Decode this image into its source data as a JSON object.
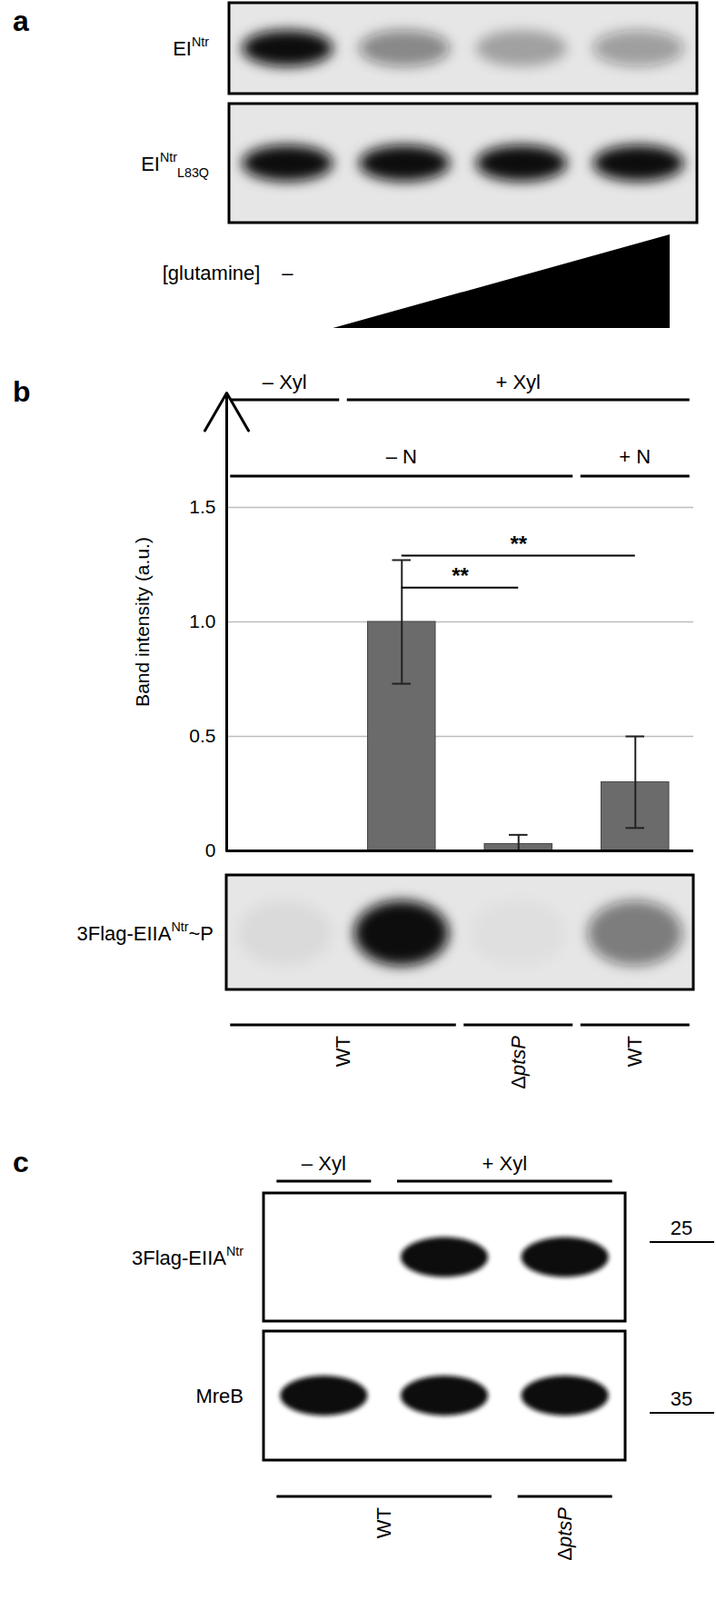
{
  "panel_a": {
    "label": "a",
    "blots": [
      {
        "name": [
          {
            "t": "EI"
          },
          {
            "t": "Ntr",
            "style": "sup"
          }
        ],
        "band_intensity": [
          1,
          0.45,
          0.3,
          0.35
        ]
      },
      {
        "name": [
          {
            "t": "EI"
          },
          {
            "t": "Ntr",
            "style": "sup"
          },
          {
            "t": "L83Q",
            "style": "sub"
          }
        ],
        "band_intensity": [
          1,
          1,
          1,
          1
        ]
      }
    ],
    "treatment": {
      "label": "[glutamine]",
      "none": "–"
    }
  },
  "chart_data": {
    "label": "b",
    "type": "bar",
    "categories": [
      null,
      null,
      null,
      null
    ],
    "values": [
      0,
      1.0,
      0.03,
      0.3
    ],
    "errors": [
      0,
      0.27,
      0.04,
      0.2
    ],
    "color": "#6b6b6b",
    "ylabel": "Band intensity (a.u.)",
    "ylim": [
      0,
      2
    ],
    "yticks": [
      0,
      0.5,
      {
        "value": 1,
        "label": "1.0"
      },
      1.5
    ],
    "grid": true,
    "significance": [
      {
        "from": 1,
        "to": 2,
        "y": 1.15,
        "label": "**"
      },
      {
        "from": 1,
        "to": 3,
        "y": 1.29,
        "label": "**"
      }
    ],
    "xylose": [
      {
        "label": "– Xyl",
        "from": 0,
        "to": 0
      },
      {
        "label": "+ Xyl",
        "from": 1,
        "to": 3
      }
    ],
    "nitrogen": [
      {
        "label": "– N",
        "from": 0,
        "to": 2
      },
      {
        "label": "+ N",
        "from": 3,
        "to": 3
      }
    ],
    "strains": [
      {
        "label": [
          {
            "t": "WT"
          }
        ],
        "from": 0,
        "to": 1
      },
      {
        "label": [
          {
            "t": "Δ"
          },
          {
            "t": "ptsP",
            "style": "italic"
          }
        ],
        "from": 2,
        "to": 2
      },
      {
        "label": [
          {
            "t": "WT"
          }
        ],
        "from": 3,
        "to": 3
      }
    ],
    "blot": {
      "name": [
        {
          "t": "3Flag-EIIA"
        },
        {
          "t": "Ntr",
          "style": "sup"
        },
        {
          "t": "~P"
        }
      ],
      "band_intensity": [
        0.05,
        1,
        0.03,
        0.5
      ]
    }
  },
  "panel_c": {
    "label": "c",
    "xylose": [
      {
        "label": "– Xyl",
        "from": 0,
        "to": 0
      },
      {
        "label": "+ Xyl",
        "from": 1,
        "to": 2
      }
    ],
    "strains": [
      {
        "label": [
          {
            "t": "WT"
          }
        ],
        "from": 0,
        "to": 1
      },
      {
        "label": [
          {
            "t": "Δ"
          },
          {
            "t": "ptsP",
            "style": "italic"
          }
        ],
        "from": 2,
        "to": 2
      }
    ],
    "blots": [
      {
        "name": [
          {
            "t": "3Flag-EIIA"
          },
          {
            "t": "Ntr",
            "style": "sup"
          }
        ],
        "band_intensity": [
          0,
          1,
          1
        ]
      },
      {
        "name": [
          {
            "t": "MreB"
          }
        ],
        "band_intensity": [
          1,
          1,
          1
        ]
      }
    ],
    "size_markers": [
      25,
      35
    ]
  }
}
